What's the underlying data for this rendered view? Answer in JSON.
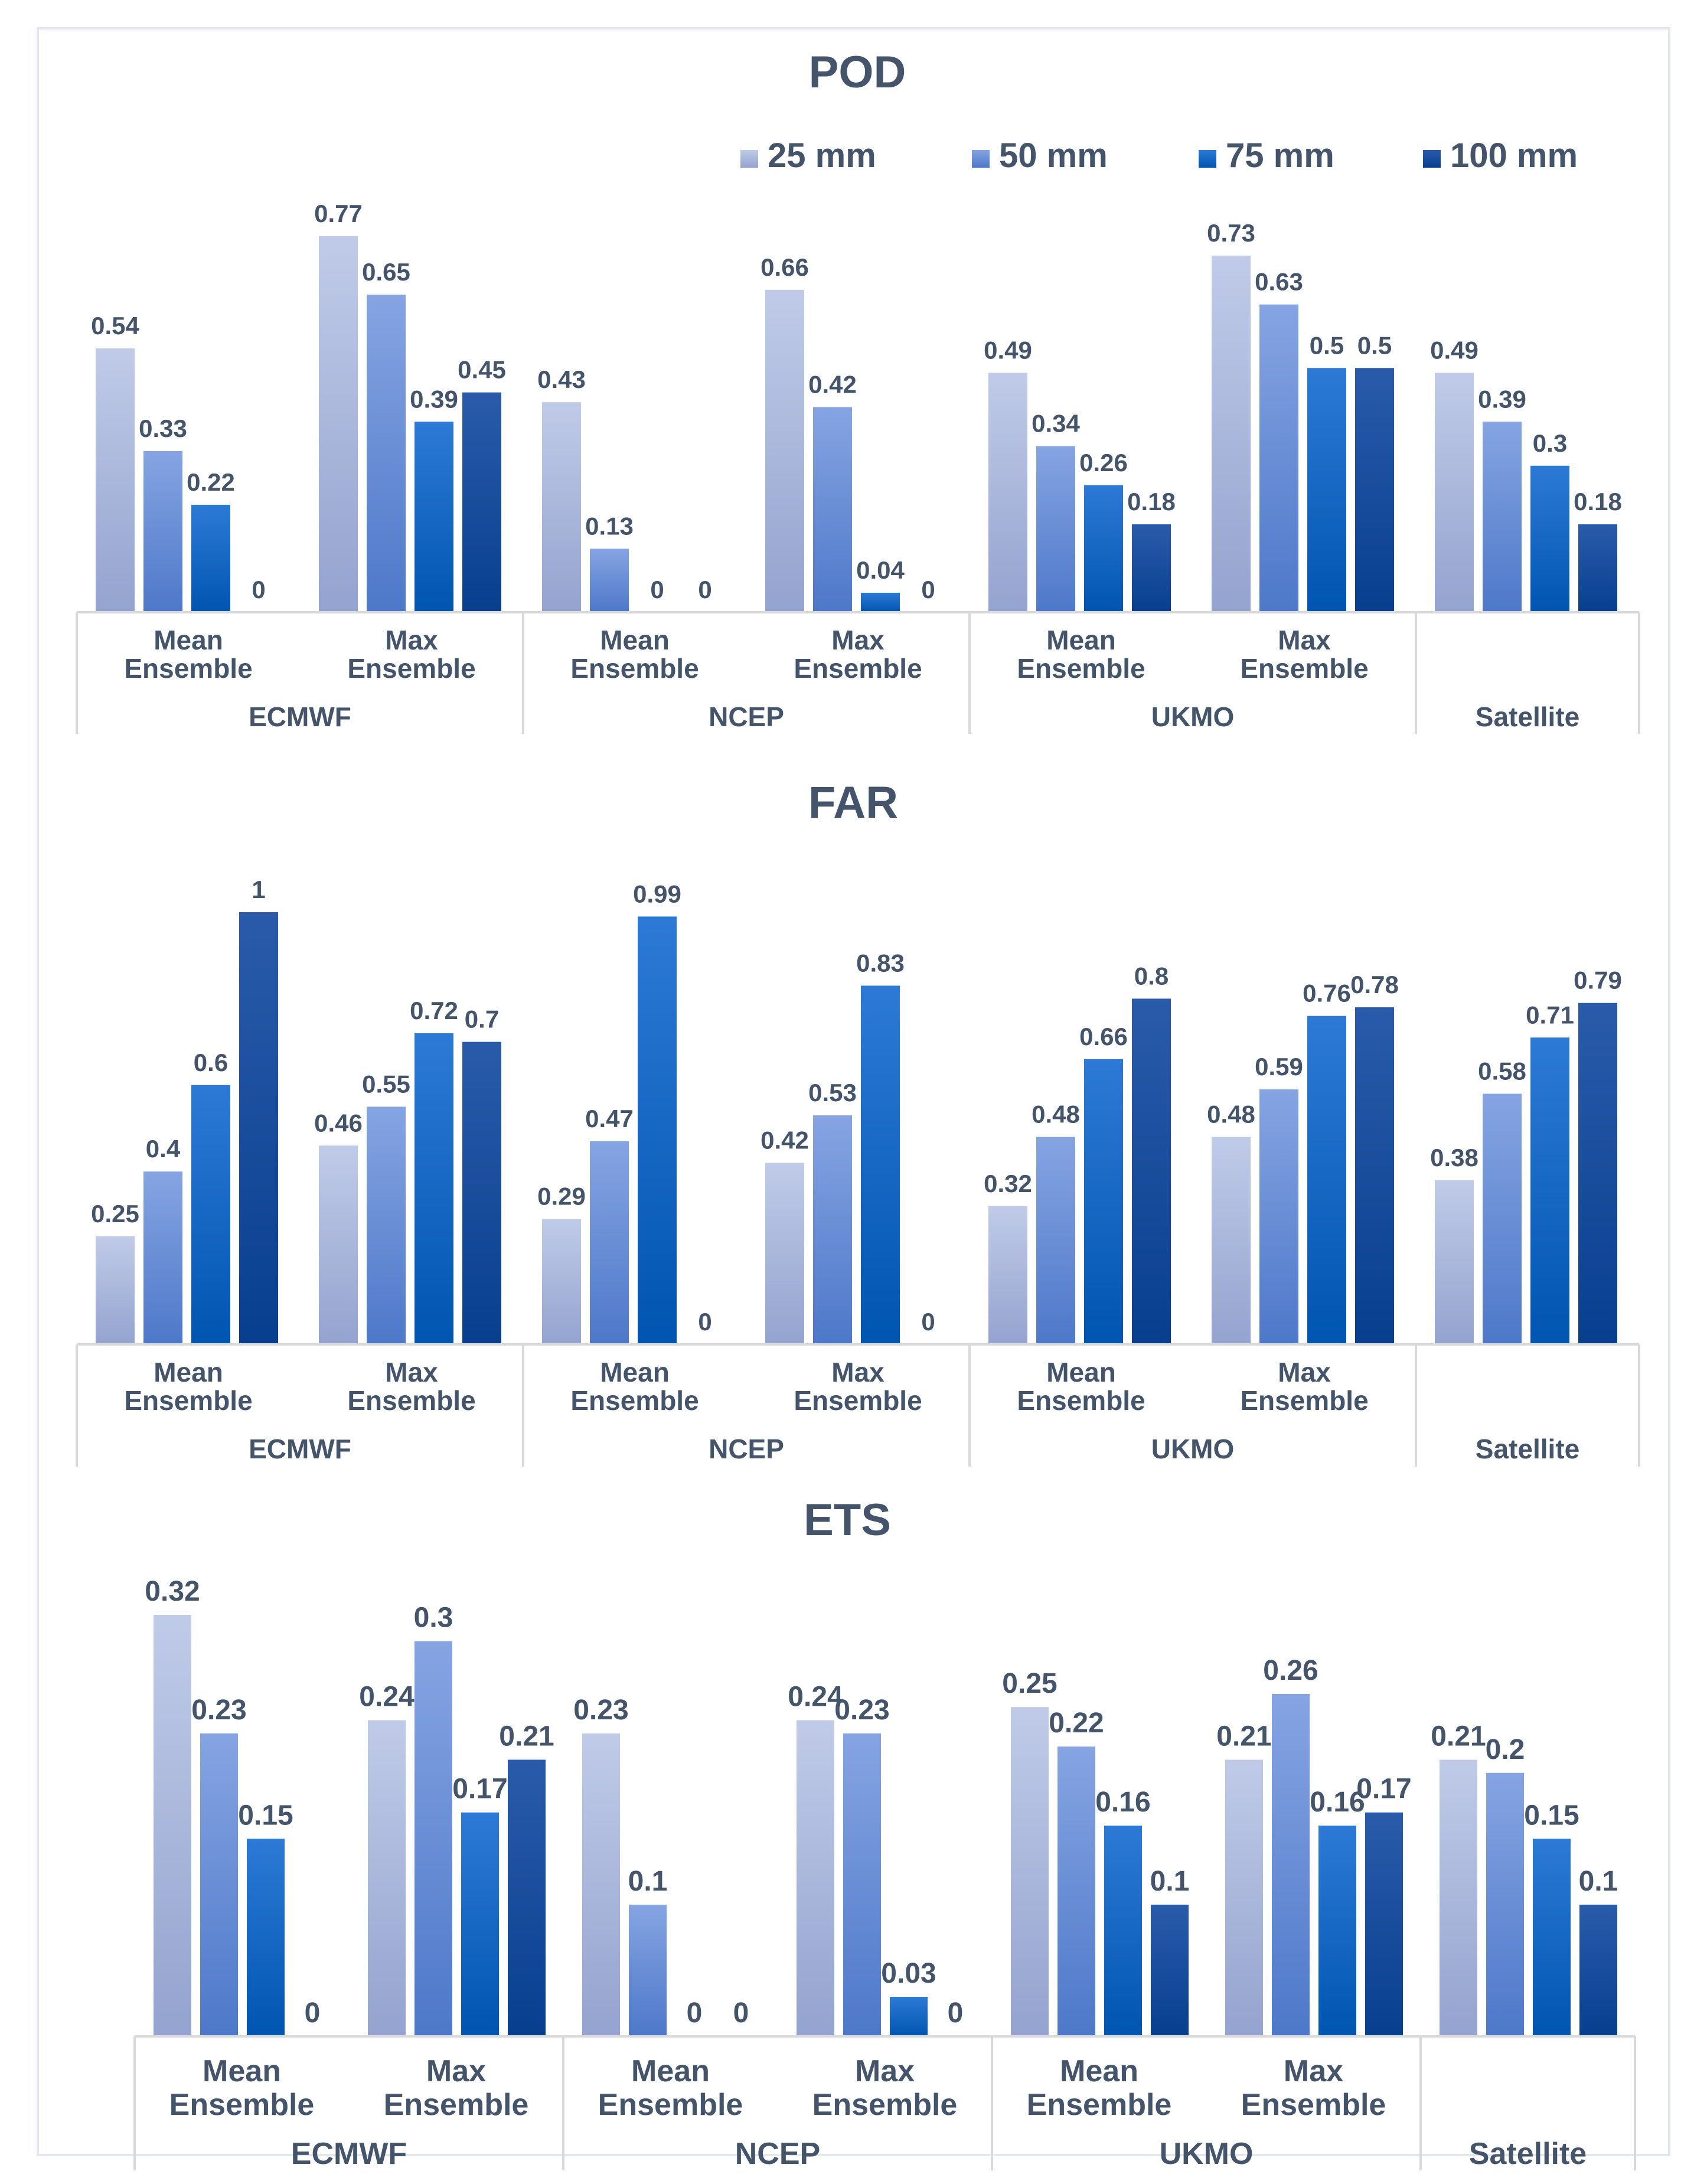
{
  "legend": [
    "25 mm",
    "50 mm",
    "75 mm",
    "100 mm"
  ],
  "colors": {
    "series": [
      [
        "#c0cbe8",
        "#94a3cf"
      ],
      [
        "#86a4e2",
        "#4d78c9"
      ],
      [
        "#2c7ad6",
        "#0055b0"
      ],
      [
        "#2a5bab",
        "#073f8e"
      ]
    ],
    "text": "#44546a",
    "axis": "#d9d9d9",
    "leader": "#a6a6a6"
  },
  "chart_data": [
    {
      "type": "bar",
      "title": "POD",
      "categories": [
        {
          "group": "ECMWF",
          "label": "Mean Ensemble"
        },
        {
          "group": "ECMWF",
          "label": "Max Ensemble"
        },
        {
          "group": "NCEP",
          "label": "Mean Ensemble"
        },
        {
          "group": "NCEP",
          "label": "Max Ensemble"
        },
        {
          "group": "UKMO",
          "label": "Mean Ensemble"
        },
        {
          "group": "UKMO",
          "label": "Max Ensemble"
        },
        {
          "group": "Satellite",
          "label": ""
        }
      ],
      "groups": [
        "ECMWF",
        "NCEP",
        "UKMO",
        "Satellite"
      ],
      "series": [
        {
          "name": "25 mm",
          "values": [
            0.54,
            0.77,
            0.43,
            0.66,
            0.49,
            0.73,
            0.49
          ]
        },
        {
          "name": "50 mm",
          "values": [
            0.33,
            0.65,
            0.13,
            0.42,
            0.34,
            0.63,
            0.39
          ]
        },
        {
          "name": "75 mm",
          "values": [
            0.22,
            0.39,
            0,
            0.04,
            0.26,
            0.5,
            0.3
          ]
        },
        {
          "name": "100 mm",
          "values": [
            0,
            0.45,
            0,
            0,
            0.18,
            0.5,
            0.18
          ]
        }
      ],
      "ylim": [
        0,
        0.8
      ],
      "grid": false,
      "legend_position": "top-right"
    },
    {
      "type": "bar",
      "title": "FAR",
      "categories": [
        {
          "group": "ECMWF",
          "label": "Mean Ensemble"
        },
        {
          "group": "ECMWF",
          "label": "Max Ensemble"
        },
        {
          "group": "NCEP",
          "label": "Mean Ensemble"
        },
        {
          "group": "NCEP",
          "label": "Max Ensemble"
        },
        {
          "group": "UKMO",
          "label": "Mean Ensemble"
        },
        {
          "group": "UKMO",
          "label": "Max Ensemble"
        },
        {
          "group": "Satellite",
          "label": ""
        }
      ],
      "groups": [
        "ECMWF",
        "NCEP",
        "UKMO",
        "Satellite"
      ],
      "series": [
        {
          "name": "25 mm",
          "values": [
            0.25,
            0.46,
            0.29,
            0.42,
            0.32,
            0.48,
            0.38
          ]
        },
        {
          "name": "50 mm",
          "values": [
            0.4,
            0.55,
            0.47,
            0.53,
            0.48,
            0.59,
            0.58
          ]
        },
        {
          "name": "75 mm",
          "values": [
            0.6,
            0.72,
            0.99,
            0.83,
            0.66,
            0.76,
            0.71
          ]
        },
        {
          "name": "100 mm",
          "values": [
            1,
            0.7,
            0,
            0,
            0.8,
            0.78,
            0.79
          ]
        }
      ],
      "ylim": [
        0,
        1
      ],
      "grid": false
    },
    {
      "type": "bar",
      "title": "ETS",
      "categories": [
        {
          "group": "ECMWF",
          "label": "Mean Ensemble"
        },
        {
          "group": "ECMWF",
          "label": "Max Ensemble"
        },
        {
          "group": "NCEP",
          "label": "Mean Ensemble"
        },
        {
          "group": "NCEP",
          "label": "Max Ensemble"
        },
        {
          "group": "UKMO",
          "label": "Mean Ensemble"
        },
        {
          "group": "UKMO",
          "label": "Max Ensemble"
        },
        {
          "group": "Satellite",
          "label": ""
        }
      ],
      "groups": [
        "ECMWF",
        "NCEP",
        "UKMO",
        "Satellite"
      ],
      "series": [
        {
          "name": "25 mm",
          "values": [
            0.32,
            0.24,
            0.23,
            0.24,
            0.25,
            0.21,
            0.21
          ]
        },
        {
          "name": "50 mm",
          "values": [
            0.23,
            0.3,
            0.1,
            0.23,
            0.22,
            0.26,
            0.2
          ]
        },
        {
          "name": "75 mm",
          "values": [
            0.15,
            0.17,
            0,
            0.03,
            0.16,
            0.16,
            0.15
          ]
        },
        {
          "name": "100 mm",
          "values": [
            0,
            0.21,
            0,
            0,
            0.1,
            0.17,
            0.1
          ]
        }
      ],
      "ylim": [
        0,
        0.32
      ],
      "grid": false
    }
  ]
}
